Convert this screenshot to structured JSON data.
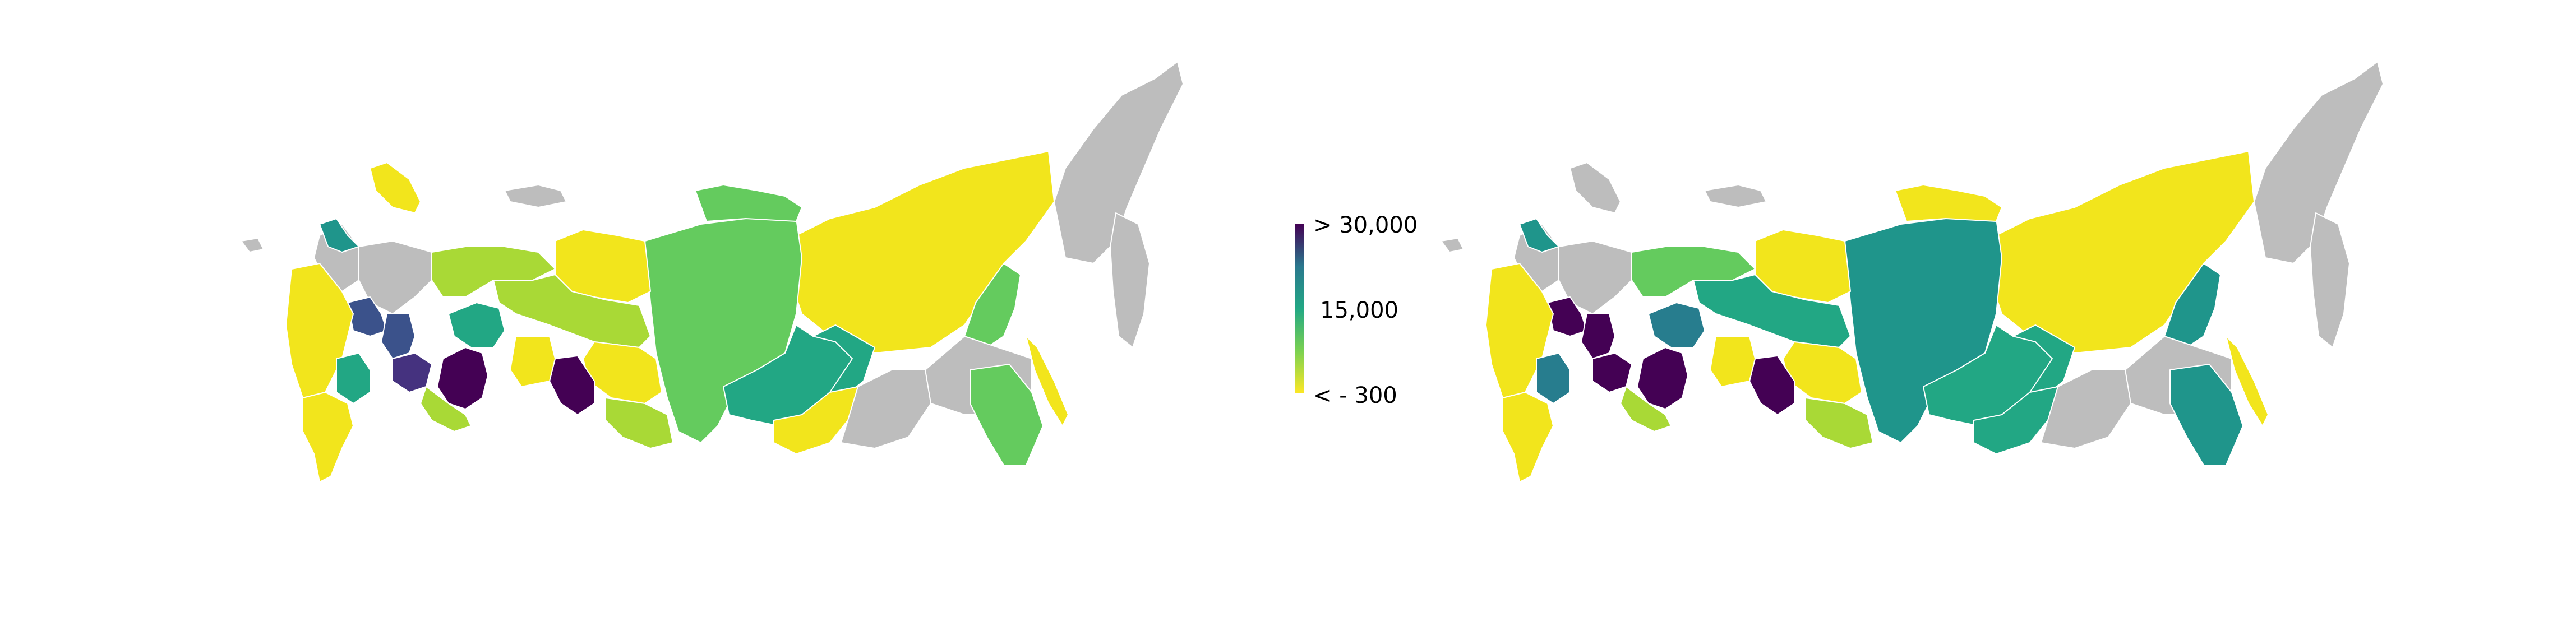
{
  "colors": {
    "missing": "#bdbdbd",
    "scale": [
      "#f2e51c",
      "#a9d936",
      "#64cb5e",
      "#22a784",
      "#1f958b",
      "#277d8e",
      "#3b528b",
      "#45327f",
      "#440154"
    ]
  },
  "colorbar": {
    "max_label": "> 30,000",
    "mid_label": "15,000",
    "min_label": "< - 300"
  },
  "maps": [
    {
      "name": "left-map",
      "regions": [
        {
          "id": "far-east-chukotka",
          "level": null
        },
        {
          "id": "kamchatka",
          "level": null
        },
        {
          "id": "sakhalin",
          "level": 0
        },
        {
          "id": "yakutia",
          "level": 0
        },
        {
          "id": "magadan",
          "level": 2
        },
        {
          "id": "khabarovsk",
          "level": null
        },
        {
          "id": "amur",
          "level": 3
        },
        {
          "id": "primorye",
          "level": 2
        },
        {
          "id": "krasnoyarsk",
          "level": 2
        },
        {
          "id": "irkutsk",
          "level": 3
        },
        {
          "id": "buryatia",
          "level": 0
        },
        {
          "id": "zabaikalsky",
          "level": null
        },
        {
          "id": "taimyr-north",
          "level": 2
        },
        {
          "id": "yamalo-nenets",
          "level": 0
        },
        {
          "id": "khanty-mansi",
          "level": 1
        },
        {
          "id": "tomsk",
          "level": 0
        },
        {
          "id": "kemerovo",
          "level": 8
        },
        {
          "id": "novosibirsk",
          "level": 0
        },
        {
          "id": "altai",
          "level": 1
        },
        {
          "id": "tyumen",
          "level": 8
        },
        {
          "id": "sverdlovsk",
          "level": 3
        },
        {
          "id": "chelyabinsk",
          "level": 1
        },
        {
          "id": "bashkortostan",
          "level": 7
        },
        {
          "id": "komi",
          "level": 1
        },
        {
          "id": "arkhangelsk",
          "level": null
        },
        {
          "id": "karelia",
          "level": null
        },
        {
          "id": "murmansk",
          "level": 0
        },
        {
          "id": "leningrad",
          "level": 4
        },
        {
          "id": "moscow",
          "level": 6
        },
        {
          "id": "central-west",
          "level": 0
        },
        {
          "id": "volga",
          "level": 6
        },
        {
          "id": "south",
          "level": 3
        },
        {
          "id": "caucasus",
          "level": 0
        }
      ]
    },
    {
      "name": "right-map",
      "regions": [
        {
          "id": "far-east-chukotka",
          "level": null
        },
        {
          "id": "kamchatka",
          "level": null
        },
        {
          "id": "sakhalin",
          "level": 0
        },
        {
          "id": "yakutia",
          "level": 0
        },
        {
          "id": "magadan",
          "level": 4
        },
        {
          "id": "khabarovsk",
          "level": null
        },
        {
          "id": "amur",
          "level": 3
        },
        {
          "id": "primorye",
          "level": 4
        },
        {
          "id": "krasnoyarsk",
          "level": 4
        },
        {
          "id": "irkutsk",
          "level": 3
        },
        {
          "id": "buryatia",
          "level": 3
        },
        {
          "id": "zabaikalsky",
          "level": null
        },
        {
          "id": "taimyr-north",
          "level": 0
        },
        {
          "id": "yamalo-nenets",
          "level": 0
        },
        {
          "id": "khanty-mansi",
          "level": 3
        },
        {
          "id": "tomsk",
          "level": 0
        },
        {
          "id": "kemerovo",
          "level": 8
        },
        {
          "id": "novosibirsk",
          "level": 0
        },
        {
          "id": "altai",
          "level": 1
        },
        {
          "id": "tyumen",
          "level": 8
        },
        {
          "id": "sverdlovsk",
          "level": 5
        },
        {
          "id": "chelyabinsk",
          "level": 1
        },
        {
          "id": "bashkortostan",
          "level": 8
        },
        {
          "id": "komi",
          "level": 2
        },
        {
          "id": "arkhangelsk",
          "level": null
        },
        {
          "id": "karelia",
          "level": null
        },
        {
          "id": "murmansk",
          "level": null
        },
        {
          "id": "leningrad",
          "level": 4
        },
        {
          "id": "moscow",
          "level": 8
        },
        {
          "id": "central-west",
          "level": 0
        },
        {
          "id": "volga",
          "level": 8
        },
        {
          "id": "south",
          "level": 5
        },
        {
          "id": "caucasus",
          "level": 0
        }
      ]
    }
  ]
}
